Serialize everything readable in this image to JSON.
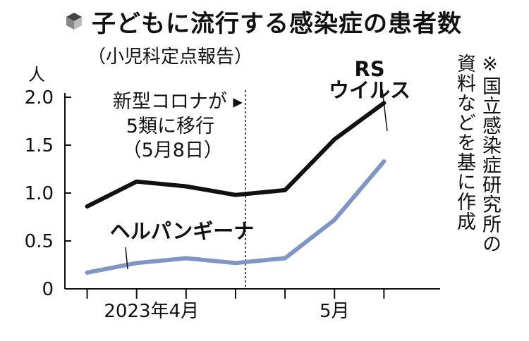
{
  "header": {
    "title": "子どもに流行する感染症の患者数",
    "subtitle": "（小児科定点報告）",
    "icon": "cube-icon"
  },
  "source_note": "※国立感染症研究所の\n資料などを基に作成",
  "colors": {
    "rs": "#111111",
    "herpangina": "#7f96c4",
    "text": "#111111"
  },
  "chart_data": {
    "type": "line",
    "unit_label": "人",
    "ylim": [
      0,
      2.0
    ],
    "y_ticks": [
      {
        "value": 0,
        "label": "0"
      },
      {
        "value": 0.5,
        "label": "0.5"
      },
      {
        "value": 1.0,
        "label": "1.0"
      },
      {
        "value": 1.5,
        "label": "1.5"
      },
      {
        "value": 2.0,
        "label": "2.0"
      }
    ],
    "x_tick_count": 7,
    "x_group_labels": [
      {
        "label": "2023年4月",
        "at": 1.3
      },
      {
        "label": "5月",
        "at": 5
      }
    ],
    "annotation": {
      "lines": [
        "新型コロナが ▸",
        "5類に移行",
        "（5月8日）"
      ],
      "at": 3.2
    },
    "series": [
      {
        "name": "RS\nウイルス",
        "key": "rs",
        "values": [
          0.86,
          1.12,
          1.07,
          0.98,
          1.03,
          1.56,
          1.94
        ]
      },
      {
        "name": "ヘルパンギーナ",
        "key": "herpangina",
        "values": [
          0.17,
          0.27,
          0.32,
          0.27,
          0.32,
          0.72,
          1.33
        ]
      }
    ],
    "grid": false,
    "legend": "inline labels"
  }
}
